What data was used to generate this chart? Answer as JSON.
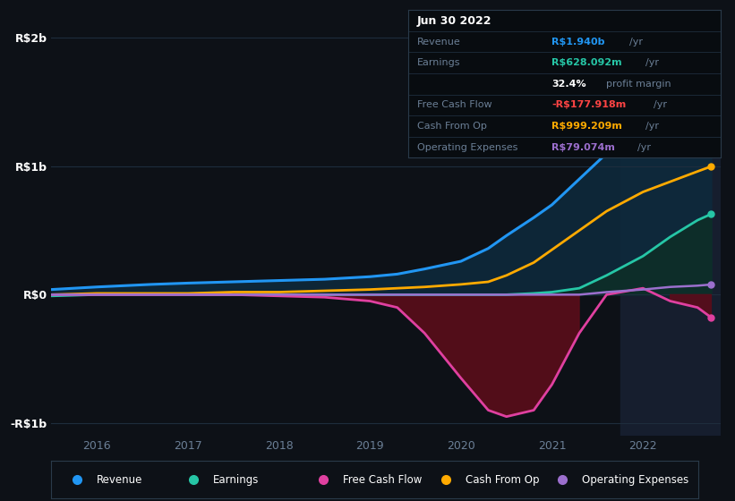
{
  "bg_color": "#0d1117",
  "plot_bg_color": "#0d1117",
  "highlight_bg": "#161e2e",
  "grid_color": "#1e2d3d",
  "text_color": "#6b7f96",
  "white_color": "#ffffff",
  "revenue_color": "#2196f3",
  "earnings_color": "#26c6a6",
  "fcf_color": "#e040a0",
  "cashfromop_color": "#ffaa00",
  "opex_color": "#9c6fce",
  "revenue_fill_color": "#0d2a3d",
  "earnings_fill_color": "#0d2e28",
  "fcf_fill_neg": "#5a0d1a",
  "years": [
    2015.5,
    2016.0,
    2016.3,
    2016.6,
    2017.0,
    2017.5,
    2018.0,
    2018.5,
    2019.0,
    2019.3,
    2019.6,
    2020.0,
    2020.3,
    2020.5,
    2020.8,
    2021.0,
    2021.3,
    2021.6,
    2022.0,
    2022.3,
    2022.6,
    2022.75
  ],
  "revenue": [
    0.04,
    0.06,
    0.07,
    0.08,
    0.09,
    0.1,
    0.11,
    0.12,
    0.14,
    0.16,
    0.2,
    0.26,
    0.36,
    0.46,
    0.6,
    0.7,
    0.9,
    1.1,
    1.4,
    1.6,
    1.85,
    1.94
  ],
  "earnings": [
    -0.01,
    0.0,
    0.0,
    0.0,
    0.0,
    0.0,
    0.0,
    0.0,
    0.0,
    0.0,
    0.0,
    0.0,
    0.0,
    0.0,
    0.01,
    0.02,
    0.05,
    0.15,
    0.3,
    0.45,
    0.58,
    0.628
  ],
  "fcf": [
    0.0,
    0.0,
    0.0,
    0.0,
    0.0,
    0.0,
    -0.01,
    -0.02,
    -0.05,
    -0.1,
    -0.3,
    -0.65,
    -0.9,
    -0.95,
    -0.9,
    -0.7,
    -0.3,
    0.0,
    0.05,
    -0.05,
    -0.1,
    -0.178
  ],
  "cashfromop": [
    0.0,
    0.01,
    0.01,
    0.01,
    0.01,
    0.02,
    0.02,
    0.03,
    0.04,
    0.05,
    0.06,
    0.08,
    0.1,
    0.15,
    0.25,
    0.35,
    0.5,
    0.65,
    0.8,
    0.88,
    0.96,
    0.999
  ],
  "opex": [
    0.0,
    0.0,
    0.0,
    0.0,
    0.0,
    0.0,
    0.0,
    0.0,
    0.0,
    0.0,
    0.0,
    0.0,
    0.0,
    0.0,
    0.0,
    0.0,
    0.0,
    0.02,
    0.04,
    0.06,
    0.07,
    0.079
  ],
  "xlim": [
    2015.5,
    2022.85
  ],
  "ylim": [
    -1.1,
    2.1
  ],
  "yticks": [
    -1.0,
    0.0,
    1.0,
    2.0
  ],
  "ytick_labels": [
    "-R$1b",
    "R$0",
    "R$1b",
    "R$2b"
  ],
  "xticks": [
    2016,
    2017,
    2018,
    2019,
    2020,
    2021,
    2022
  ],
  "highlight_start": 2021.75,
  "highlight_end": 2022.85,
  "legend_items": [
    {
      "label": "Revenue",
      "color": "#2196f3"
    },
    {
      "label": "Earnings",
      "color": "#26c6a6"
    },
    {
      "label": "Free Cash Flow",
      "color": "#e040a0"
    },
    {
      "label": "Cash From Op",
      "color": "#ffaa00"
    },
    {
      "label": "Operating Expenses",
      "color": "#9c6fce"
    }
  ],
  "tooltip": {
    "date": "Jun 30 2022",
    "rows": [
      {
        "label": "Revenue",
        "value": "R$1.940b",
        "suffix": " /yr",
        "color": "#2196f3",
        "bold_label": false
      },
      {
        "label": "Earnings",
        "value": "R$628.092m",
        "suffix": " /yr",
        "color": "#26c6a6",
        "bold_label": false
      },
      {
        "label": "",
        "value": "32.4%",
        "suffix": " profit margin",
        "color": "#ffffff",
        "bold_label": true
      },
      {
        "label": "Free Cash Flow",
        "value": "-R$177.918m",
        "suffix": " /yr",
        "color": "#ff4444",
        "bold_label": false
      },
      {
        "label": "Cash From Op",
        "value": "R$999.209m",
        "suffix": " /yr",
        "color": "#ffaa00",
        "bold_label": false
      },
      {
        "label": "Operating Expenses",
        "value": "R$79.074m",
        "suffix": " /yr",
        "color": "#9c6fce",
        "bold_label": false
      }
    ]
  }
}
